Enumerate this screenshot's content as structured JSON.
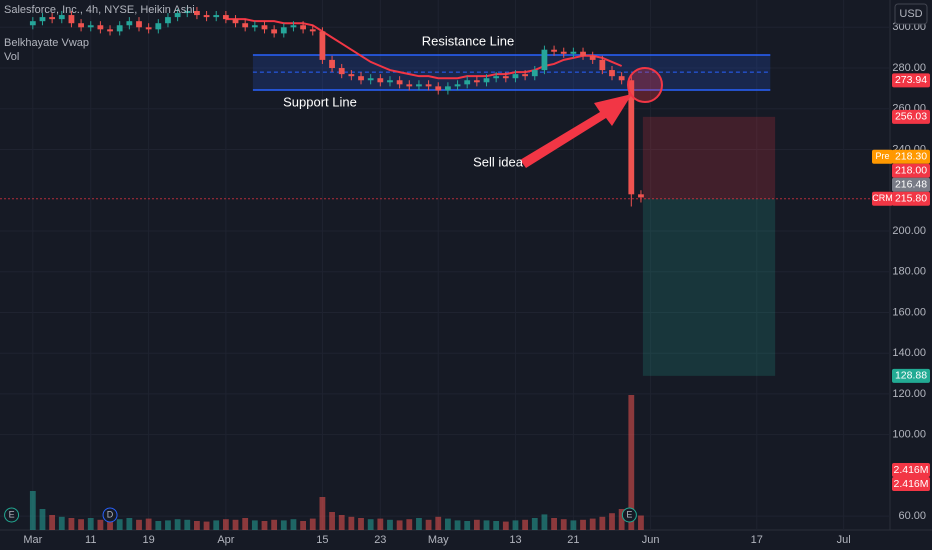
{
  "chart_data": {
    "type": "candlestick",
    "title": "Salesforce, Inc., 4h, NYSE, Heikin Ashi",
    "currency": "USD",
    "xlim": [
      -3.4,
      88.8
    ],
    "ylim": [
      53.2,
      313.4
    ],
    "xticks": [
      {
        "value": 0,
        "label": "Mar"
      },
      {
        "value": 6,
        "label": "11"
      },
      {
        "value": 12,
        "label": "19"
      },
      {
        "value": 20,
        "label": "Apr"
      },
      {
        "value": 30,
        "label": "15"
      },
      {
        "value": 36,
        "label": "23"
      },
      {
        "value": 42,
        "label": "May"
      },
      {
        "value": 50,
        "label": "13"
      },
      {
        "value": 56,
        "label": "21"
      },
      {
        "value": 64,
        "label": "Jun"
      },
      {
        "value": 75,
        "label": "17"
      },
      {
        "value": 84,
        "label": "Jul"
      }
    ],
    "yticks": [
      {
        "value": 300,
        "label": "300.00"
      },
      {
        "value": 280,
        "label": "280.00"
      },
      {
        "value": 260,
        "label": "260.00"
      },
      {
        "value": 240,
        "label": "240.00"
      },
      {
        "value": 200,
        "label": "200.00"
      },
      {
        "value": 180,
        "label": "180.00"
      },
      {
        "value": 160,
        "label": "160.00"
      },
      {
        "value": 140,
        "label": "140.00"
      },
      {
        "value": 120,
        "label": "120.00"
      },
      {
        "value": 100,
        "label": "100.00"
      },
      {
        "value": 60,
        "label": "60.00"
      }
    ],
    "candles": {
      "up_color": "#26a69a",
      "down_color": "#ef5350",
      "x": [
        0,
        1,
        2,
        3,
        4,
        5,
        6,
        7,
        8,
        9,
        10,
        11,
        12,
        13,
        14,
        15,
        16,
        17,
        18,
        19,
        20,
        21,
        22,
        23,
        24,
        25,
        26,
        27,
        28,
        29,
        30,
        31,
        32,
        33,
        34,
        35,
        36,
        37,
        38,
        39,
        40,
        41,
        42,
        43,
        44,
        45,
        46,
        47,
        48,
        49,
        50,
        51,
        52,
        53,
        54,
        55,
        56,
        57,
        58,
        59,
        60,
        61,
        62,
        63
      ],
      "open": [
        301,
        303,
        305,
        304,
        306,
        302,
        300,
        301,
        299,
        298,
        301,
        303,
        300,
        299,
        302,
        305,
        307,
        308,
        306,
        305,
        306,
        304,
        302,
        300,
        301,
        299,
        297,
        300,
        301,
        299,
        298,
        284,
        280,
        277,
        276,
        274,
        275,
        273,
        274,
        272,
        271,
        272,
        271,
        269,
        271,
        272,
        274,
        273,
        275,
        276,
        275,
        277,
        276,
        279,
        289,
        288,
        287,
        288,
        286,
        284,
        279,
        276,
        274,
        218
      ],
      "high": [
        305,
        307,
        307,
        308,
        308,
        304,
        303,
        303,
        301,
        303,
        305,
        305,
        302,
        304,
        307,
        309,
        310,
        310,
        308,
        308,
        308,
        306,
        304,
        303,
        303,
        301,
        302,
        303,
        303,
        301,
        300,
        286,
        282,
        279,
        278,
        277,
        277,
        276,
        276,
        274,
        274,
        274,
        273,
        273,
        274,
        276,
        276,
        277,
        278,
        278,
        279,
        279,
        281,
        291,
        291,
        290,
        290,
        290,
        288,
        286,
        281,
        278,
        276,
        220
      ],
      "low": [
        299,
        301,
        302,
        302,
        300,
        298,
        298,
        297,
        296,
        296,
        299,
        298,
        297,
        297,
        300,
        303,
        305,
        304,
        303,
        303,
        302,
        300,
        298,
        298,
        297,
        295,
        295,
        298,
        297,
        296,
        282,
        278,
        275,
        274,
        272,
        272,
        271,
        271,
        270,
        269,
        269,
        269,
        267,
        267,
        269,
        270,
        271,
        271,
        273,
        273,
        273,
        274,
        274,
        277,
        286,
        285,
        285,
        284,
        282,
        277,
        274,
        272,
        212,
        214
      ],
      "close": [
        303,
        305,
        304,
        306,
        302,
        300,
        301,
        299,
        298,
        301,
        303,
        300,
        299,
        302,
        305,
        307,
        308,
        306,
        305,
        306,
        304,
        302,
        300,
        301,
        299,
        297,
        300,
        301,
        299,
        298,
        284,
        280,
        277,
        276,
        274,
        275,
        273,
        274,
        272,
        271,
        272,
        271,
        269,
        271,
        272,
        274,
        273,
        275,
        276,
        275,
        277,
        276,
        279,
        289,
        288,
        287,
        288,
        286,
        284,
        279,
        276,
        274,
        218,
        216.48
      ]
    },
    "series": [
      {
        "name": "Belkhayate Vwap",
        "color": "#f23645",
        "values": [
          null,
          null,
          null,
          null,
          null,
          null,
          null,
          null,
          null,
          null,
          null,
          null,
          null,
          null,
          null,
          null,
          null,
          null,
          null,
          null,
          304,
          304,
          304,
          303,
          303,
          303,
          302,
          302,
          302,
          301,
          298,
          295,
          292,
          289,
          286,
          283,
          281,
          279,
          278,
          277,
          276,
          276,
          275,
          275,
          275,
          276,
          276,
          276,
          277,
          277,
          278,
          278,
          279,
          281,
          282,
          284,
          285,
          286,
          286,
          285,
          283,
          281,
          null,
          null
        ]
      }
    ],
    "volume": {
      "name": "Vol",
      "vlim": [
        0,
        25000000
      ],
      "values": [
        6500000,
        3500000,
        2500000,
        2200000,
        2000000,
        1800000,
        2000000,
        1700000,
        1600000,
        1800000,
        2000000,
        1700000,
        1900000,
        1500000,
        1600000,
        1800000,
        1700000,
        1500000,
        1400000,
        1600000,
        1800000,
        1700000,
        2000000,
        1600000,
        1500000,
        1700000,
        1600000,
        1800000,
        1500000,
        1900000,
        5500000,
        3000000,
        2500000,
        2200000,
        2000000,
        1800000,
        1900000,
        1700000,
        1600000,
        1800000,
        2000000,
        1700000,
        2200000,
        1900000,
        1600000,
        1500000,
        1700000,
        1600000,
        1500000,
        1400000,
        1600000,
        1700000,
        2000000,
        2600000,
        2000000,
        1800000,
        1600000,
        1700000,
        1900000,
        2200000,
        2800000,
        3500000,
        22500000,
        2416000
      ],
      "labels": [
        "2.416M",
        "2.416M"
      ]
    },
    "channel": {
      "x": [
        22.8,
        76.4
      ],
      "top": 286.4,
      "middle": 278,
      "bottom": 269.2,
      "color": "#2962ff"
    },
    "position": {
      "x": [
        63.2,
        76.9
      ],
      "entry": 215.8,
      "stop": 256.03,
      "target": 128.88
    },
    "annotations": [
      "Resistance Line",
      "Support Line",
      "Sell idea"
    ],
    "events": [
      {
        "label": "E",
        "x": -2.2
      },
      {
        "label": "D",
        "x": 8
      },
      {
        "label": "E",
        "x": 61.8
      }
    ],
    "price_tags": [
      {
        "value": 273.94,
        "label": "273.94",
        "color": "#f23645"
      },
      {
        "value": 256.03,
        "label": "256.03",
        "color": "#f23645"
      },
      {
        "value": 218.3,
        "label": "218.30",
        "color": "#ff9800",
        "prefix": "Pre"
      },
      {
        "value": 218,
        "label": "218.00",
        "color": "#f23645"
      },
      {
        "value": 216.48,
        "label": "216.48",
        "color": "#787b86"
      },
      {
        "value": 215.8,
        "label": "215.80",
        "color": "#f23645",
        "prefix": "CRM"
      },
      {
        "value": 128.88,
        "label": "128.88",
        "color": "#22ab94"
      }
    ]
  }
}
